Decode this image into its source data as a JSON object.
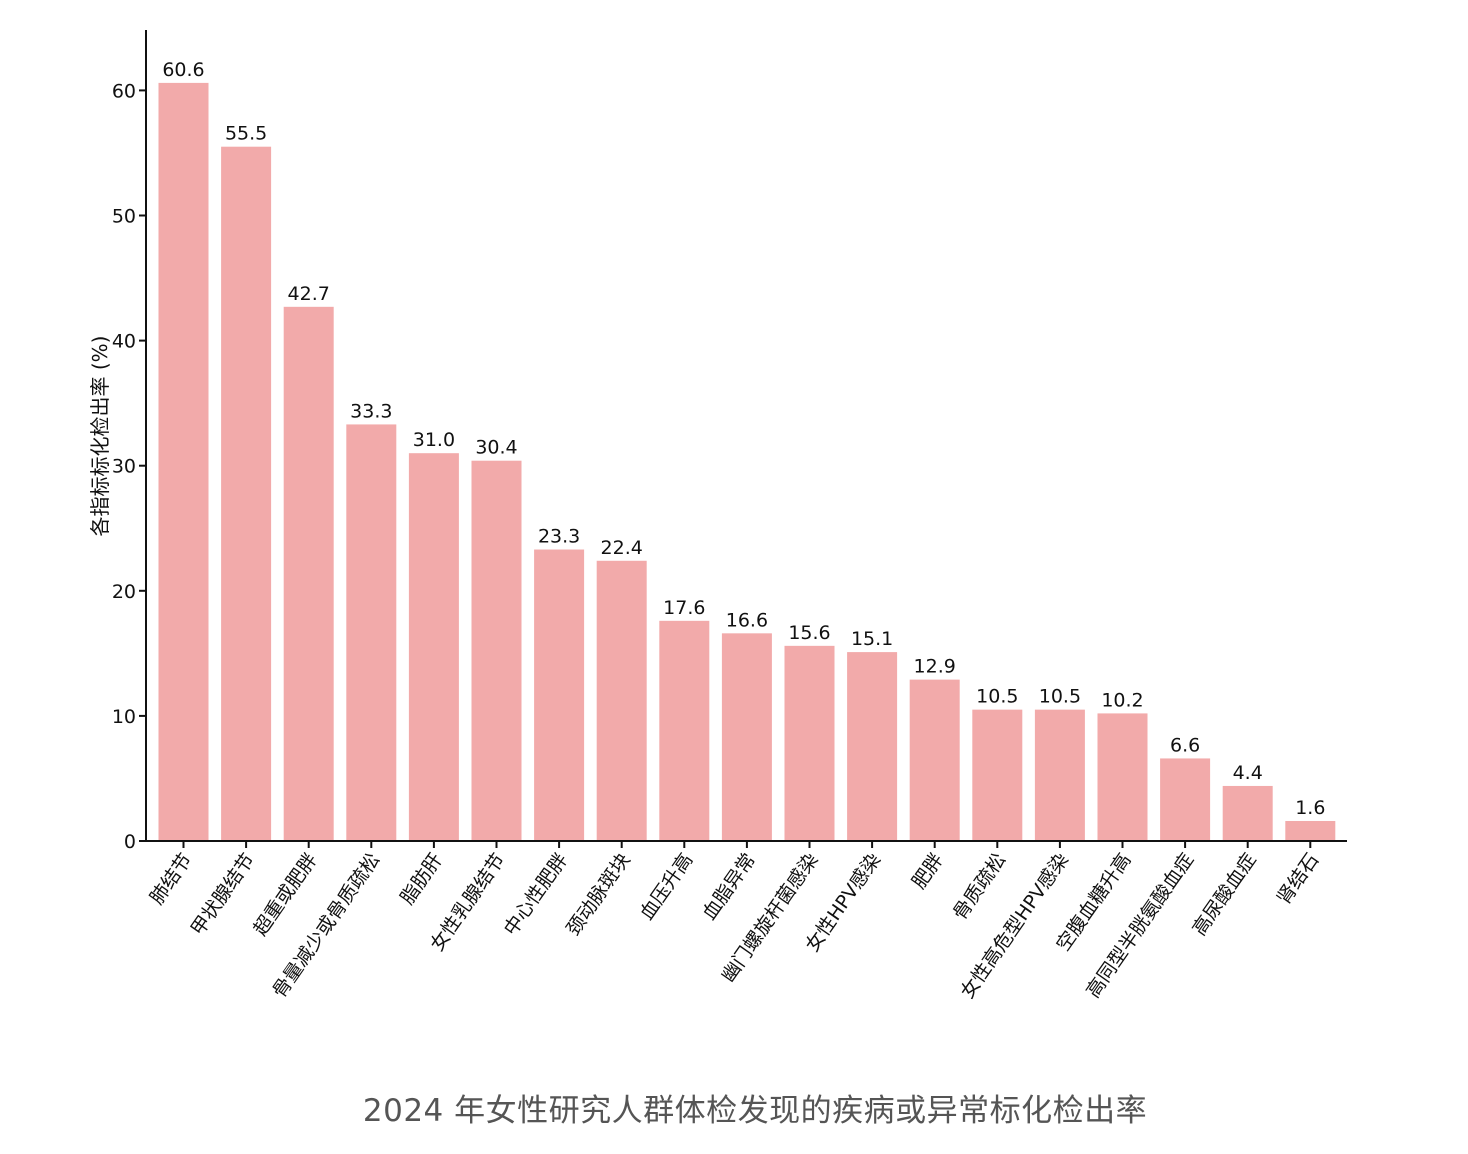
{
  "caption": "2024 年女性研究人群体检发现的疾病或异常标化检出率",
  "colors": {
    "bar": "#f2aaaa",
    "axis": "#111111",
    "caption": "#555555"
  },
  "chart_data": {
    "type": "bar",
    "title": "",
    "xlabel": "",
    "ylabel": "各指标标化检出率 (%)",
    "ylim": [
      0,
      65
    ],
    "yticks": [
      0,
      10,
      20,
      30,
      40,
      50,
      60
    ],
    "grid": false,
    "legend": "none",
    "categories": [
      "肺结节",
      "甲状腺结节",
      "超重或肥胖",
      "骨量减少或骨质疏松",
      "脂肪肝",
      "女性乳腺结节",
      "中心性肥胖",
      "颈动脉斑块",
      "血压升高",
      "血脂异常",
      "幽门螺旋杆菌感染",
      "女性HPV感染",
      "肥胖",
      "骨质疏松",
      "女性高危型HPV感染",
      "空腹血糖升高",
      "高同型半胱氨酸血症",
      "高尿酸血症",
      "肾结石"
    ],
    "values": [
      60.6,
      55.5,
      42.7,
      33.3,
      31.0,
      30.4,
      23.3,
      22.4,
      17.6,
      16.6,
      15.6,
      15.1,
      12.9,
      10.5,
      10.5,
      10.2,
      6.6,
      4.4,
      1.6
    ],
    "value_labels": [
      "60.6",
      "55.5",
      "42.7",
      "33.3",
      "31.0",
      "30.4",
      "23.3",
      "22.4",
      "17.6",
      "16.6",
      "15.6",
      "15.1",
      "12.9",
      "10.5",
      "10.5",
      "10.2",
      "6.6",
      "4.4",
      "1.6"
    ]
  }
}
